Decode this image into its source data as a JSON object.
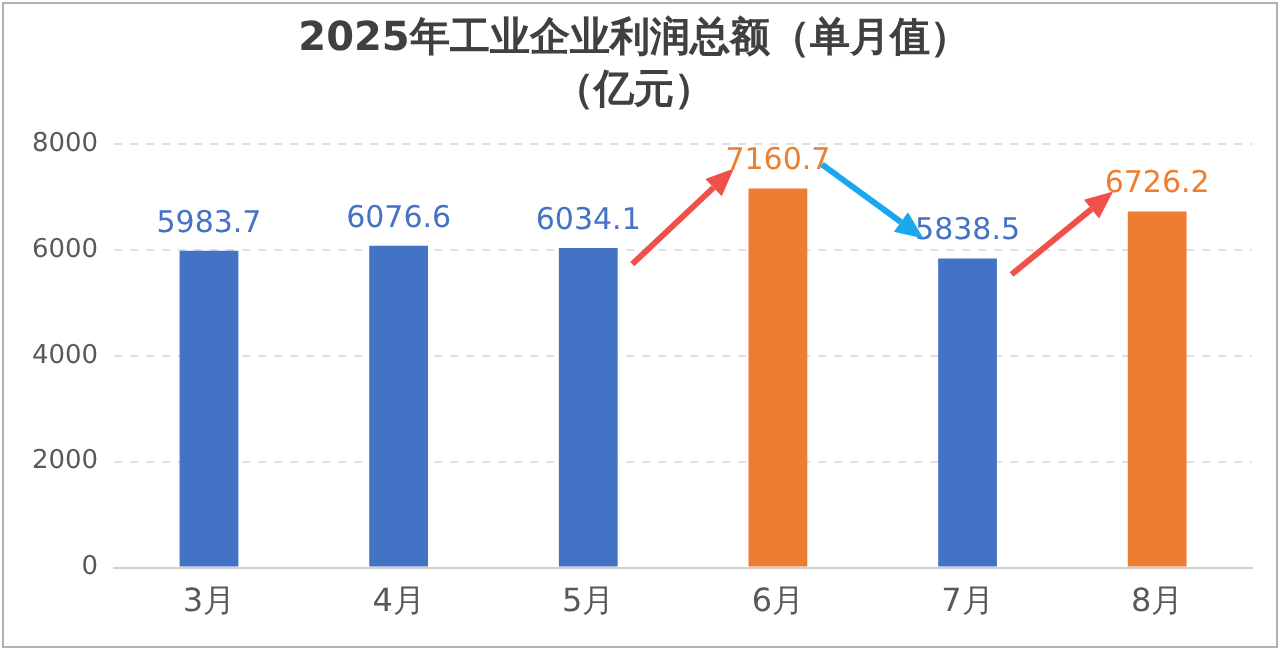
{
  "chart_data": {
    "type": "bar",
    "title": "2025年工业企业利润总额（单月值）",
    "subtitle": "（亿元）",
    "categories": [
      "3月",
      "4月",
      "5月",
      "6月",
      "7月",
      "8月"
    ],
    "values": [
      5983.7,
      6076.6,
      6034.1,
      7160.7,
      5838.5,
      6726.2
    ],
    "colors": [
      "#4472c4",
      "#4472c4",
      "#4472c4",
      "#ed7d31",
      "#4472c4",
      "#ed7d31"
    ],
    "ylim": [
      0,
      8000
    ],
    "yticks": [
      0,
      2000,
      4000,
      6000,
      8000
    ],
    "grid": "y",
    "legend": false,
    "data_labels": true
  }
}
